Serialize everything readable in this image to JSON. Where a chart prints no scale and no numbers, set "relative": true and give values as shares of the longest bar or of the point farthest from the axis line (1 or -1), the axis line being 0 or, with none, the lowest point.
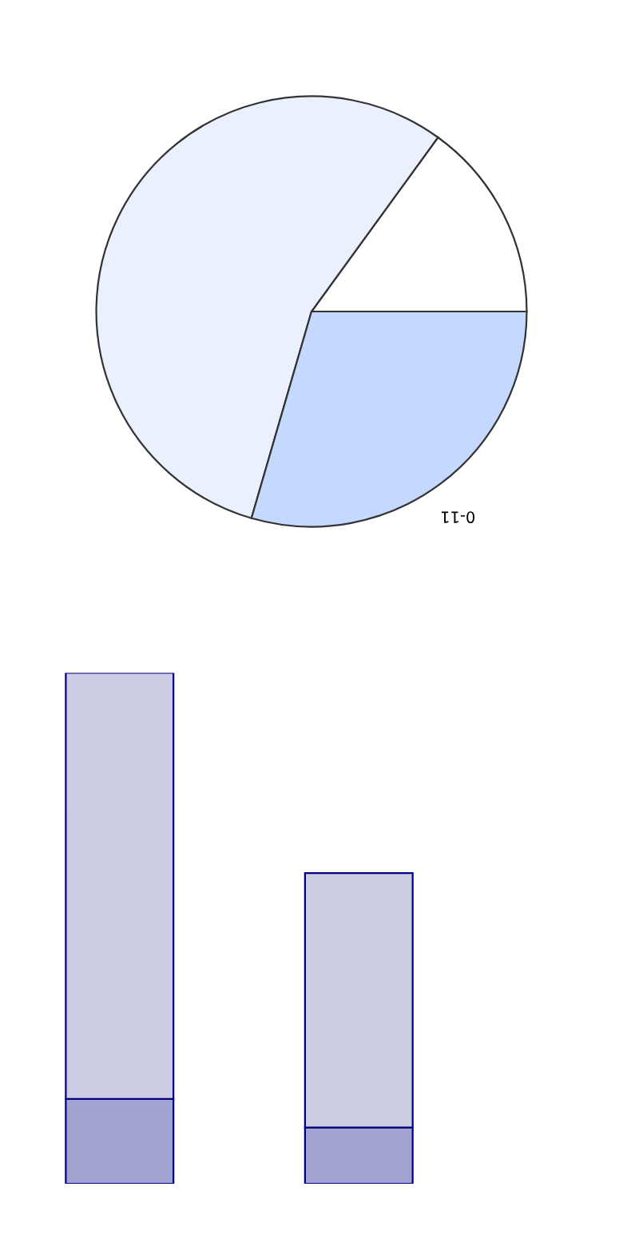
{
  "chart_data": [
    {
      "type": "pie",
      "categories": [
        null,
        null,
        null
      ],
      "values": [
        15,
        55.5,
        29.5
      ],
      "colors": [
        "#ffffff",
        "#eaf0fd",
        "#c5d9fe"
      ],
      "annotations": [
        "0-11"
      ]
    },
    {
      "type": "bar",
      "stacked": true,
      "relative": true,
      "categories": [
        null,
        null
      ],
      "series": [
        {
          "color": "#a3a3d2",
          "values": [
            0.166,
            0.11
          ]
        },
        {
          "color": "#cccce5",
          "values": [
            0.834,
            0.498
          ]
        }
      ]
    }
  ]
}
